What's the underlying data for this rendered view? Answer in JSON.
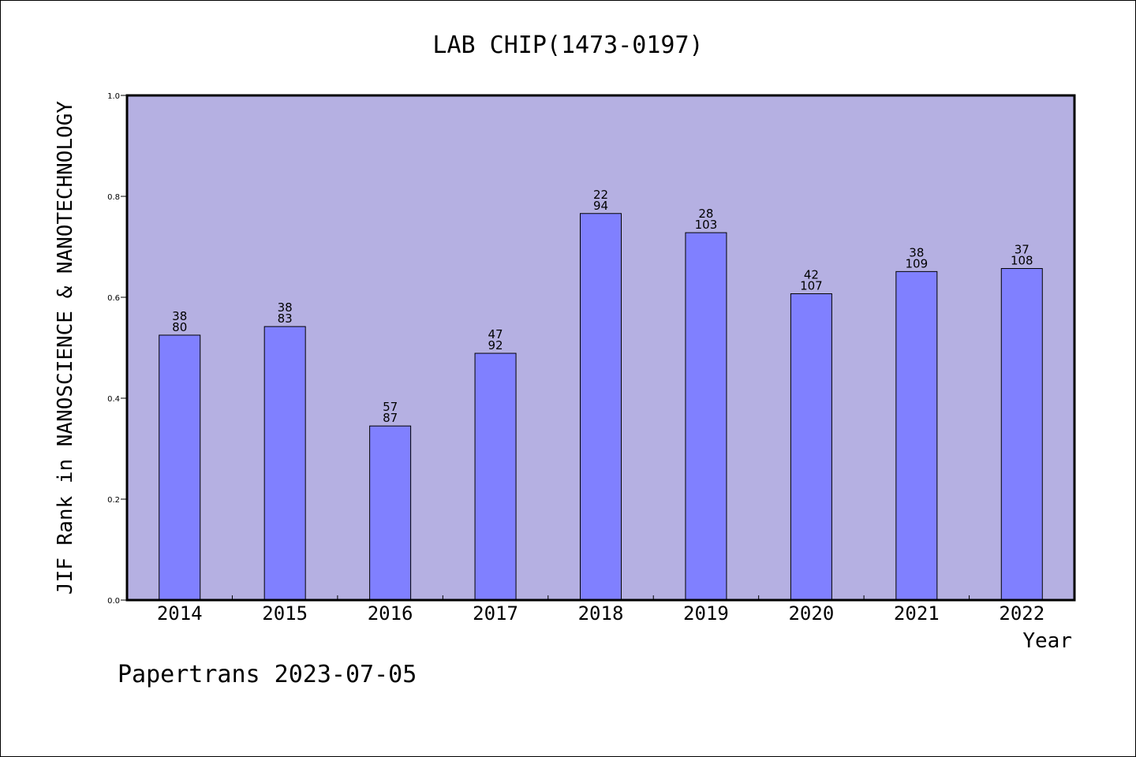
{
  "chart_data": {
    "type": "bar",
    "title": "LAB CHIP(1473-0197)",
    "xlabel": "Year",
    "ylabel": "JIF Rank in NANOSCIENCE & NANOTECHNOLOGY",
    "categories": [
      "2014",
      "2015",
      "2016",
      "2017",
      "2018",
      "2019",
      "2020",
      "2021",
      "2022"
    ],
    "values": [
      0.525,
      0.542,
      0.345,
      0.489,
      0.766,
      0.728,
      0.607,
      0.651,
      0.657
    ],
    "rank": [
      "38",
      "38",
      "57",
      "47",
      "22",
      "28",
      "42",
      "38",
      "37"
    ],
    "total": [
      "80",
      "83",
      "87",
      "92",
      "94",
      "103",
      "107",
      "109",
      "108"
    ],
    "ylim": [
      0,
      1.0
    ],
    "yticks": [
      "0.0",
      "0.2",
      "0.4",
      "0.6",
      "0.8",
      "1.0"
    ],
    "grid": false,
    "colors": {
      "plot_background": "#b5b0e2",
      "bar_fill": "#8080ff",
      "bar_stroke": "#000000"
    }
  },
  "footer": "Papertrans 2023-07-05"
}
